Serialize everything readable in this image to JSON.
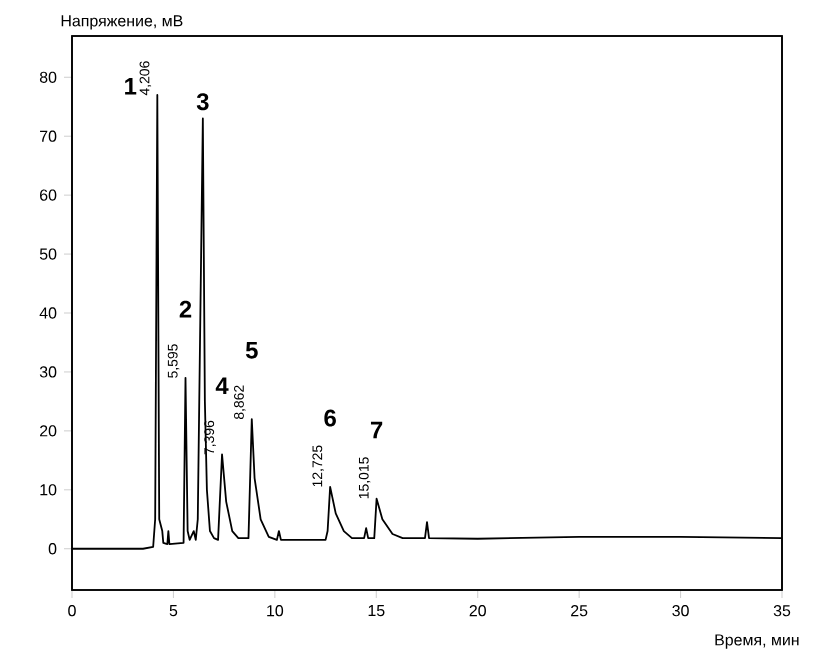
{
  "chart_data": {
    "type": "line",
    "xlabel": "Время, мин",
    "ylabel": "Напряжение, мВ",
    "xlim": [
      0,
      35
    ],
    "ylim": [
      -7,
      87
    ],
    "xticks": [
      0,
      5,
      10,
      15,
      20,
      25,
      30,
      35
    ],
    "yticks": [
      0,
      10,
      20,
      30,
      40,
      50,
      60,
      70,
      80
    ],
    "grid": false,
    "marker": "none",
    "line_style": "solid",
    "series": [
      {
        "color": "#000000",
        "x": [
          0,
          3.5,
          4.0,
          4.1,
          4.206,
          4.3,
          4.45,
          4.5,
          4.7,
          4.75,
          4.8,
          5.5,
          5.595,
          5.7,
          5.8,
          6.0,
          6.1,
          6.2,
          6.45,
          6.55,
          6.65,
          6.8,
          7.0,
          7.2,
          7.396,
          7.6,
          7.9,
          8.2,
          8.7,
          8.862,
          9.0,
          9.3,
          9.7,
          10.1,
          10.2,
          10.3,
          12.5,
          12.6,
          12.725,
          13.0,
          13.4,
          13.8,
          14.4,
          14.5,
          14.6,
          14.9,
          15.015,
          15.3,
          15.8,
          16.3,
          17.4,
          17.5,
          17.6,
          20,
          25,
          30,
          35
        ],
        "values": [
          0,
          0,
          0.3,
          5,
          77,
          5,
          3,
          1,
          0.8,
          3,
          0.8,
          1,
          29,
          3,
          1.5,
          3,
          1.5,
          5,
          73,
          25,
          10,
          3,
          1.8,
          1.5,
          16,
          8,
          3,
          1.8,
          1.8,
          22,
          12,
          5,
          2,
          1.5,
          3,
          1.5,
          1.5,
          3,
          10.5,
          6,
          3,
          1.8,
          1.8,
          3.5,
          1.8,
          1.8,
          8.5,
          5,
          2.5,
          1.8,
          1.8,
          4.5,
          1.8,
          1.7,
          2,
          2,
          1.8
        ]
      }
    ],
    "annotations": [
      {
        "text": "1",
        "x": 4.206,
        "y": 77
      },
      {
        "text": "2",
        "x": 5.595,
        "y": 29
      },
      {
        "text": "3",
        "x": 6.45,
        "y": 73
      },
      {
        "text": "4",
        "x": 7.396,
        "y": 16
      },
      {
        "text": "5",
        "x": 8.862,
        "y": 22
      },
      {
        "text": "6",
        "x": 12.725,
        "y": 10.5
      },
      {
        "text": "7",
        "x": 15.015,
        "y": 8.5
      },
      {
        "text": "4,206",
        "x": 4.206,
        "y": 77
      },
      {
        "text": "5,595",
        "x": 5.595,
        "y": 29
      },
      {
        "text": "7,396",
        "x": 7.396,
        "y": 16
      },
      {
        "text": "8,862",
        "x": 8.862,
        "y": 22
      },
      {
        "text": "12,725",
        "x": 12.725,
        "y": 10.5
      },
      {
        "text": "15,015",
        "x": 15.015,
        "y": 8.5
      }
    ]
  }
}
